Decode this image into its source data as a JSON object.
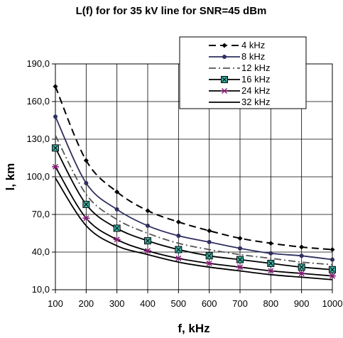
{
  "chart_data": {
    "type": "line",
    "title": "L(f) for for 35 kV line for SNR=45 dBm",
    "xlabel": "f, kHz",
    "ylabel": "l, km",
    "x": [
      100,
      200,
      300,
      400,
      500,
      600,
      700,
      800,
      900,
      1000
    ],
    "x_tick_labels": [
      "100",
      "200",
      "300",
      "400",
      "500",
      "600",
      "700",
      "800",
      "900",
      "1000"
    ],
    "ylim": [
      10,
      190
    ],
    "y_ticks": [
      10,
      40,
      70,
      100,
      130,
      160,
      190
    ],
    "y_tick_labels": [
      "10,0",
      "40,0",
      "70,0",
      "100,0",
      "130,0",
      "160,0",
      "190,0"
    ],
    "grid": "horizontal and vertical",
    "legend_position": "top-right",
    "series": [
      {
        "name": "4 kHz",
        "color": "#000000",
        "dash": "dashed",
        "marker": "diamond",
        "values": [
          172,
          113,
          88,
          73,
          64,
          57,
          51,
          47,
          44,
          42
        ]
      },
      {
        "name": "8 kHz",
        "color": "#2f2f5f",
        "dash": "solid",
        "marker": "dot",
        "values": [
          148,
          95,
          74,
          61,
          53,
          48,
          43,
          39,
          37,
          34
        ]
      },
      {
        "name": "12 kHz",
        "color": "#555555",
        "dash": "dashdot",
        "marker": "none",
        "values": [
          133,
          86,
          66,
          55,
          47,
          42,
          38,
          35,
          32,
          30
        ]
      },
      {
        "name": "16 kHz",
        "color": "#000000",
        "dash": "solid",
        "marker": "square",
        "values": [
          123,
          78,
          59,
          49,
          42,
          37,
          34,
          31,
          28,
          26
        ]
      },
      {
        "name": "24 kHz",
        "color": "#000000",
        "dash": "solid",
        "marker": "star",
        "values": [
          108,
          67,
          50,
          41,
          35,
          31,
          28,
          25,
          23,
          21
        ]
      },
      {
        "name": "32 kHz",
        "color": "#000000",
        "dash": "solid",
        "marker": "none",
        "values": [
          99,
          61,
          45,
          38,
          32,
          28,
          25,
          22,
          20,
          18
        ]
      }
    ]
  }
}
